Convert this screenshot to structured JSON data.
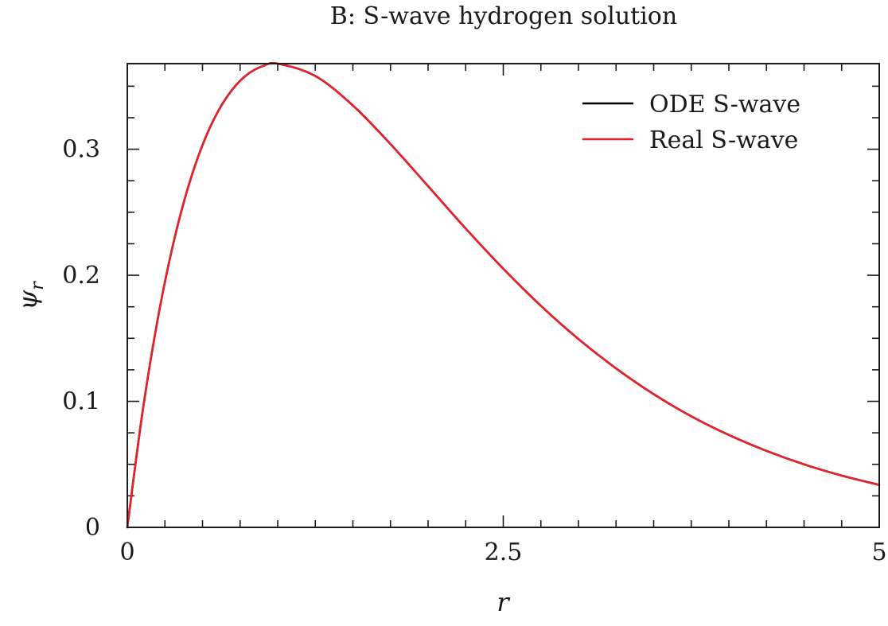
{
  "chart_data": {
    "type": "line",
    "title": "B: S-wave hydrogen solution",
    "xlabel": "r",
    "ylabel": "ψ",
    "ylabel_subscript": "r",
    "xlim": [
      0,
      5
    ],
    "ylim": [
      0,
      0.3679
    ],
    "x_ticks_major": [
      0,
      2.5,
      5
    ],
    "x_tick_labels": [
      "0",
      "2.5",
      "5"
    ],
    "x_ticks_minor_step": 0.25,
    "y_ticks_major": [
      0,
      0.1,
      0.2,
      0.3
    ],
    "y_tick_labels": [
      "0",
      "0.1",
      "0.2",
      "0.3"
    ],
    "y_ticks_minor_step": 0.025,
    "grid": false,
    "legend_position": "top-right",
    "series": [
      {
        "name": "ODE S-wave",
        "color": "#000000",
        "x": [
          0,
          0.1,
          0.2,
          0.3,
          0.4,
          0.5,
          0.6,
          0.7,
          0.8,
          0.9,
          1.0,
          1.25,
          1.5,
          1.75,
          2.0,
          2.25,
          2.5,
          2.75,
          3.0,
          3.25,
          3.5,
          3.75,
          4.0,
          4.25,
          4.5,
          4.75,
          5.0
        ],
        "y": [
          0,
          0.0905,
          0.1637,
          0.2222,
          0.2681,
          0.3033,
          0.3293,
          0.3476,
          0.3595,
          0.3659,
          0.3679,
          0.3581,
          0.3347,
          0.3041,
          0.2707,
          0.2371,
          0.2052,
          0.1758,
          0.1494,
          0.1261,
          0.1057,
          0.0881,
          0.0733,
          0.0607,
          0.05,
          0.0411,
          0.0337
        ]
      },
      {
        "name": "Real S-wave",
        "color": "#e8202a",
        "x": [
          0,
          0.1,
          0.2,
          0.3,
          0.4,
          0.5,
          0.6,
          0.7,
          0.8,
          0.9,
          1.0,
          1.25,
          1.5,
          1.75,
          2.0,
          2.25,
          2.5,
          2.75,
          3.0,
          3.25,
          3.5,
          3.75,
          4.0,
          4.25,
          4.5,
          4.75,
          5.0
        ],
        "y": [
          0,
          0.0905,
          0.1637,
          0.2222,
          0.2681,
          0.3033,
          0.3293,
          0.3476,
          0.3595,
          0.3659,
          0.3679,
          0.3581,
          0.3347,
          0.3041,
          0.2707,
          0.2371,
          0.2052,
          0.1758,
          0.1494,
          0.1261,
          0.1057,
          0.0881,
          0.0733,
          0.0607,
          0.05,
          0.0411,
          0.0337
        ]
      }
    ]
  }
}
